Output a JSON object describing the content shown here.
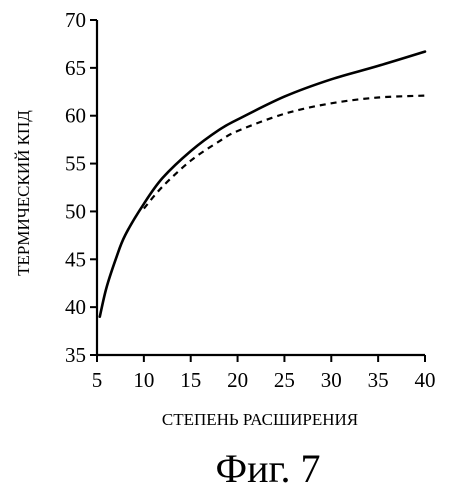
{
  "chart_data": {
    "type": "line",
    "title": "",
    "xlabel": "СТЕПЕНЬ РАСШИРЕНИЯ",
    "ylabel": "ТЕРМИЧЕСКИЙ КПД",
    "xlim": [
      5,
      40
    ],
    "ylim": [
      35,
      70
    ],
    "x_ticks": [
      5,
      10,
      15,
      20,
      25,
      30,
      35,
      40
    ],
    "y_ticks": [
      35,
      40,
      45,
      50,
      55,
      60,
      65,
      70
    ],
    "grid": false,
    "legend": "none",
    "series": [
      {
        "style": "solid",
        "color": "#000000",
        "x": [
          5.3,
          6,
          7,
          8,
          10,
          12,
          15,
          18,
          20,
          25,
          30,
          35,
          40
        ],
        "y": [
          39.0,
          42.0,
          45.0,
          47.5,
          50.8,
          53.5,
          56.3,
          58.5,
          59.6,
          62.0,
          63.8,
          65.2,
          66.7
        ]
      },
      {
        "style": "dashed",
        "color": "#000000",
        "x": [
          10,
          12,
          15,
          18,
          20,
          25,
          30,
          35,
          40
        ],
        "y": [
          50.3,
          52.6,
          55.3,
          57.3,
          58.4,
          60.2,
          61.3,
          61.9,
          62.1
        ]
      }
    ]
  },
  "caption": "Фиг. 7"
}
